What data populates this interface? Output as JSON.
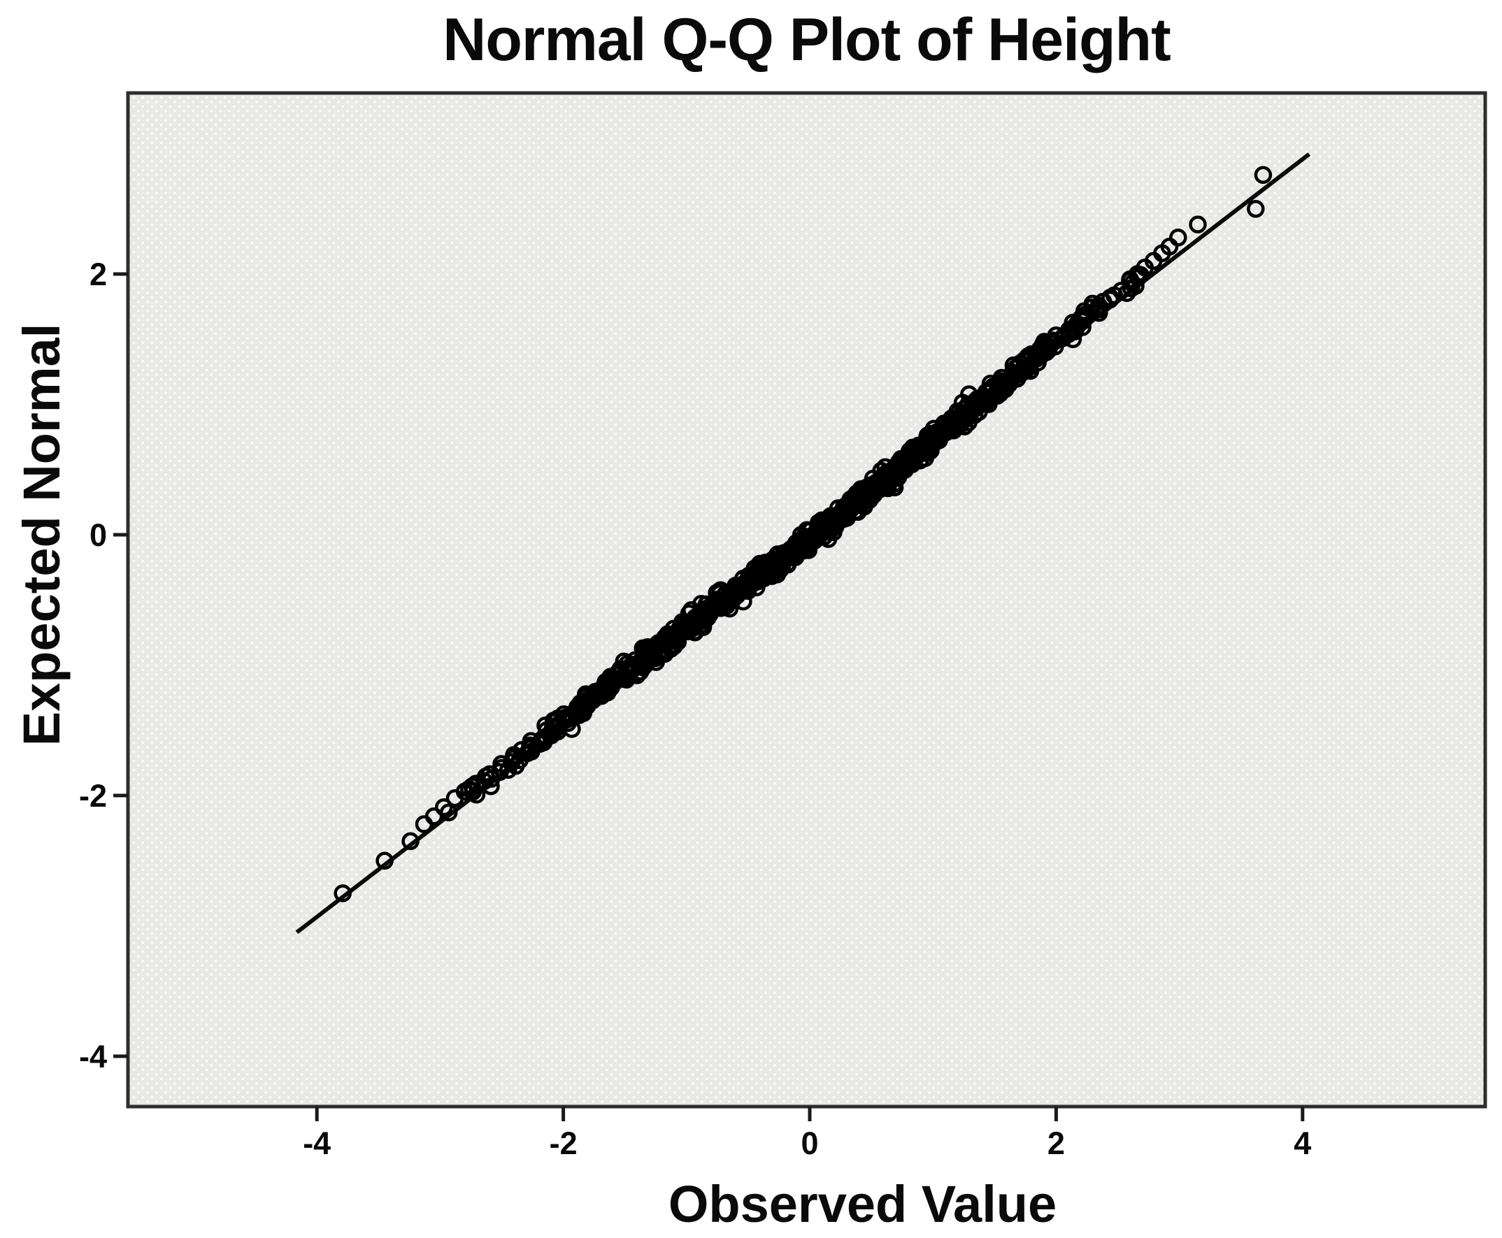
{
  "chart_data": {
    "type": "scatter",
    "subtype": "normal-qq-plot",
    "title": "Normal Q-Q Plot of Height",
    "xlabel": "Observed Value",
    "ylabel": "Expected Normal",
    "xlim": [
      -5.5,
      5.48
    ],
    "ylim": [
      -4.39,
      3.39
    ],
    "x_ticks": [
      -4,
      -2,
      0,
      2,
      4
    ],
    "y_ticks": [
      2,
      0,
      -2,
      -4
    ],
    "grid": false,
    "legend": null,
    "reference_line": {
      "x1": -4.15,
      "y1": -3.04,
      "x2": 4.04,
      "y2": 2.91,
      "slope": 0.731,
      "intercept": -0.03
    },
    "points": {
      "n_total_approx": 800,
      "relation": "expected_normal = 0.731 * observed_value - 0.03 (points hug the fit line)",
      "dense_band": {
        "y_min": -2.0,
        "y_max": 2.0,
        "jitter_sd_x": 0.055,
        "wiggle_amp_x": 0.04,
        "seed": 1234567
      },
      "left_tail": [
        [
          -3.79,
          -2.75
        ],
        [
          -3.45,
          -2.5
        ],
        [
          -3.24,
          -2.35
        ],
        [
          -3.13,
          -2.22
        ],
        [
          -3.05,
          -2.16
        ],
        [
          -2.97,
          -2.09
        ],
        [
          -2.93,
          -2.13
        ],
        [
          -2.88,
          -2.02
        ],
        [
          -2.8,
          -1.97
        ],
        [
          -2.74,
          -1.93
        ]
      ],
      "right_tail": [
        [
          2.6,
          1.96
        ],
        [
          2.66,
          2.0
        ],
        [
          2.72,
          2.05
        ],
        [
          2.79,
          2.1
        ],
        [
          2.86,
          2.16
        ],
        [
          2.92,
          2.21
        ],
        [
          2.99,
          2.28
        ],
        [
          3.15,
          2.38
        ],
        [
          3.62,
          2.5
        ],
        [
          3.68,
          2.76
        ]
      ]
    },
    "marker": {
      "shape": "open-circle",
      "radius_px": 10.5,
      "stroke_px": 4.5
    }
  },
  "colors": {
    "page_bg": "#ffffff",
    "plot_bg": "#e8e8e6",
    "plot_bg_dot": "#fbfbfb",
    "frame": "#2d2d2d",
    "tick": "#1a1a1a",
    "text": "#0a0a0a",
    "marker": "#000000",
    "line": "#0a0a0a"
  }
}
